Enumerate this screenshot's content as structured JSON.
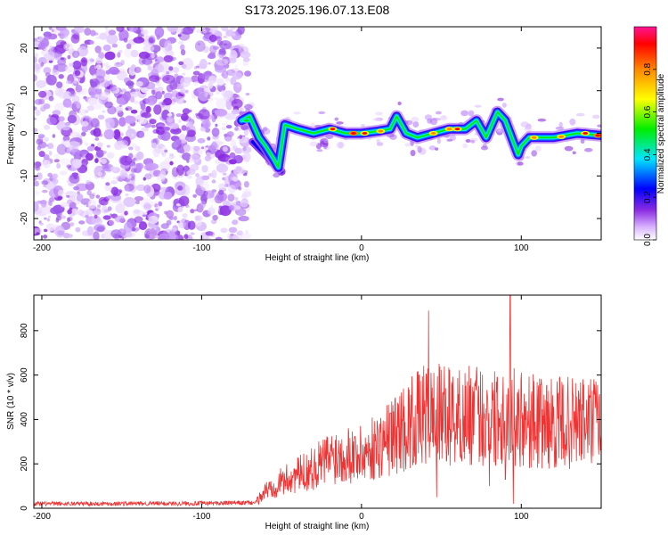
{
  "title": "S173.2025.196.07.13.E08",
  "chart_data": [
    {
      "type": "heatmap",
      "xlabel": "Height of straight line (km)",
      "ylabel": "Frequency (Hz)",
      "xlim": [
        -205,
        150
      ],
      "ylim": [
        -25,
        25
      ],
      "xticks": [
        -200,
        -100,
        0,
        100
      ],
      "yticks": [
        -20,
        -10,
        0,
        10,
        20
      ],
      "colorbar": {
        "label": "Normalized spectral amplitude",
        "range": [
          0,
          1
        ],
        "ticks": [
          0.0,
          0.2,
          0.4,
          0.6,
          0.8
        ]
      },
      "noise_region_x": [
        -205,
        -75
      ],
      "ridge": [
        {
          "x": -75,
          "y": 3
        },
        {
          "x": -70,
          "y": 4
        },
        {
          "x": -64,
          "y": -1
        },
        {
          "x": -60,
          "y": -3
        },
        {
          "x": -55,
          "y": -6
        },
        {
          "x": -52,
          "y": -8
        },
        {
          "x": -48,
          "y": 2
        },
        {
          "x": -40,
          "y": 1
        },
        {
          "x": -30,
          "y": 0
        },
        {
          "x": -20,
          "y": 1
        },
        {
          "x": -10,
          "y": 0
        },
        {
          "x": 0,
          "y": 0
        },
        {
          "x": 10,
          "y": 0.5
        },
        {
          "x": 18,
          "y": 1
        },
        {
          "x": 22,
          "y": 4
        },
        {
          "x": 28,
          "y": 0
        },
        {
          "x": 35,
          "y": -1
        },
        {
          "x": 45,
          "y": 0
        },
        {
          "x": 55,
          "y": 1
        },
        {
          "x": 65,
          "y": 1
        },
        {
          "x": 72,
          "y": 3
        },
        {
          "x": 78,
          "y": -1
        },
        {
          "x": 85,
          "y": 5
        },
        {
          "x": 90,
          "y": 3
        },
        {
          "x": 95,
          "y": -2
        },
        {
          "x": 98,
          "y": -5
        },
        {
          "x": 100,
          "y": -3
        },
        {
          "x": 105,
          "y": -1
        },
        {
          "x": 120,
          "y": -1
        },
        {
          "x": 135,
          "y": 0
        },
        {
          "x": 150,
          "y": -0.5
        }
      ],
      "branch": [
        {
          "x": -68,
          "y": -2
        },
        {
          "x": -60,
          "y": -5
        },
        {
          "x": -50,
          "y": -9
        }
      ]
    },
    {
      "type": "line",
      "xlabel": "Height of straight line (km)",
      "ylabel": "SNR (10 * v/v)",
      "xlim": [
        -205,
        150
      ],
      "ylim": [
        0,
        960
      ],
      "xticks": [
        -200,
        -100,
        0,
        100
      ],
      "yticks": [
        0,
        200,
        400,
        600,
        800
      ],
      "color": "#ee3333",
      "envelope": [
        {
          "x": -205,
          "y": 20
        },
        {
          "x": -100,
          "y": 22
        },
        {
          "x": -66,
          "y": 25
        },
        {
          "x": -60,
          "y": 80
        },
        {
          "x": -50,
          "y": 120
        },
        {
          "x": -40,
          "y": 150
        },
        {
          "x": -30,
          "y": 180
        },
        {
          "x": -20,
          "y": 230
        },
        {
          "x": -10,
          "y": 250
        },
        {
          "x": 0,
          "y": 240
        },
        {
          "x": 10,
          "y": 280
        },
        {
          "x": 20,
          "y": 330
        },
        {
          "x": 30,
          "y": 380
        },
        {
          "x": 40,
          "y": 420
        },
        {
          "x": 50,
          "y": 420
        },
        {
          "x": 60,
          "y": 410
        },
        {
          "x": 70,
          "y": 420
        },
        {
          "x": 80,
          "y": 410
        },
        {
          "x": 90,
          "y": 420
        },
        {
          "x": 100,
          "y": 400
        },
        {
          "x": 120,
          "y": 380
        },
        {
          "x": 150,
          "y": 390
        }
      ],
      "peaks": [
        {
          "x": 42,
          "y": 890
        },
        {
          "x": 36,
          "y": 600
        },
        {
          "x": 93,
          "y": 960
        },
        {
          "x": 85,
          "y": 590
        },
        {
          "x": 100,
          "y": 610
        },
        {
          "x": 90,
          "y": 560
        }
      ],
      "dips": [
        {
          "x": 47,
          "y": 50
        },
        {
          "x": 80,
          "y": 100
        },
        {
          "x": 90,
          "y": 130
        },
        {
          "x": 95,
          "y": 20
        }
      ]
    }
  ]
}
